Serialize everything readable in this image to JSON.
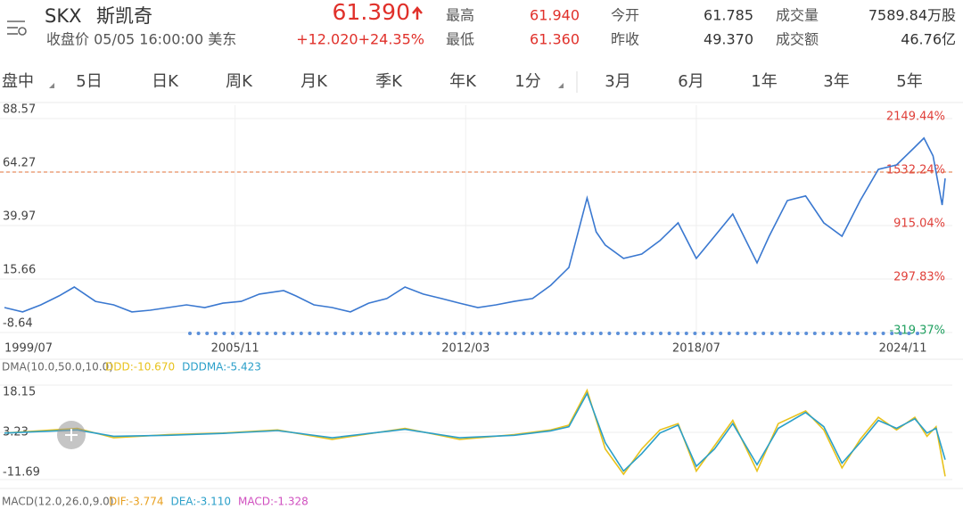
{
  "header": {
    "ticker": "SKX",
    "name": "斯凯奇",
    "price": "61.390",
    "close_info": "收盘价 05/05 16:00:00 美东",
    "change": "+12.020+24.35%",
    "stats": [
      [
        "最高",
        "61.940",
        "今开",
        "61.785",
        "成交量",
        "7589.84万股"
      ],
      [
        "最低",
        "61.360",
        "昨收",
        "49.370",
        "成交额",
        "46.76亿"
      ]
    ]
  },
  "tabs": [
    "盘中",
    "5日",
    "日K",
    "周K",
    "月K",
    "季K",
    "年K",
    "1分",
    "3月",
    "6月",
    "1年",
    "3年",
    "5年"
  ],
  "chart_data": [
    {
      "type": "line",
      "color": "#3a78d0",
      "x": [
        "1999/07",
        "2000/01",
        "2000/07",
        "2001/01",
        "2001/06",
        "2002/01",
        "2002/07",
        "2003/01",
        "2003/07",
        "2004/01",
        "2004/07",
        "2005/01",
        "2005/07",
        "2006/01",
        "2006/07",
        "2007/03",
        "2007/07",
        "2008/01",
        "2008/07",
        "2009/01",
        "2009/07",
        "2010/01",
        "2010/07",
        "2011/01",
        "2011/07",
        "2012/01",
        "2012/07",
        "2013/01",
        "2013/07",
        "2014/01",
        "2014/07",
        "2015/01",
        "2015/07",
        "2015/10",
        "2016/01",
        "2016/07",
        "2017/01",
        "2017/07",
        "2018/01",
        "2018/07",
        "2019/01",
        "2019/07",
        "2020/03",
        "2020/07",
        "2021/01",
        "2021/07",
        "2022/01",
        "2022/07",
        "2023/01",
        "2023/07",
        "2024/01",
        "2024/07",
        "2024/10",
        "2025/01",
        "2025/04",
        "2025/05"
      ],
      "values": [
        2.7,
        0.7,
        3.9,
        8.0,
        12.0,
        5.5,
        3.9,
        0.7,
        1.5,
        2.7,
        3.9,
        2.7,
        4.7,
        5.5,
        8.8,
        10.4,
        8.0,
        3.9,
        2.7,
        0.7,
        4.7,
        6.8,
        12.0,
        8.8,
        6.8,
        4.7,
        2.7,
        3.9,
        5.5,
        6.8,
        12.8,
        20.9,
        52.5,
        37.1,
        31.1,
        25.0,
        27.0,
        33.1,
        41.2,
        25.0,
        35.1,
        45.2,
        23.0,
        35.1,
        51.3,
        53.4,
        41.2,
        35.1,
        51.3,
        65.5,
        67.5,
        75.6,
        79.7,
        71.6,
        49.3,
        61.39
      ],
      "xlim": [
        "1999/07",
        "2025/05"
      ],
      "xticks": [
        "1999/07",
        "2005/11",
        "2012/03",
        "2018/07",
        "2024/11"
      ],
      "ylim": [
        -8.64,
        88.57
      ],
      "yticks": [
        -8.64,
        15.66,
        39.97,
        64.27,
        88.57
      ],
      "y2lim": [
        -319.37,
        2149.44
      ],
      "y2ticks": [
        {
          "value": -319.37,
          "label": "-319.37%"
        },
        {
          "value": 297.83,
          "label": "297.83%"
        },
        {
          "value": 915.04,
          "label": "915.04%"
        },
        {
          "value": 1532.24,
          "label": "1532.24%"
        },
        {
          "value": 2149.44,
          "label": "2149.44%"
        }
      ],
      "ref_line": 64.27,
      "grid": true
    },
    {
      "type": "line",
      "title": "DMA(10.0,50.0,10.0)",
      "x": [
        "1999/07",
        "2001/07",
        "2002/07",
        "2004/01",
        "2005/07",
        "2007/01",
        "2008/07",
        "2010/07",
        "2012/01",
        "2013/07",
        "2014/07",
        "2015/01",
        "2015/07",
        "2016/01",
        "2016/07",
        "2017/01",
        "2017/07",
        "2018/01",
        "2018/07",
        "2019/01",
        "2019/07",
        "2020/03",
        "2020/10",
        "2021/07",
        "2022/01",
        "2022/07",
        "2023/01",
        "2023/07",
        "2024/01",
        "2024/07",
        "2024/11",
        "2025/02",
        "2025/05"
      ],
      "series": [
        {
          "name": "DDD:-10.670",
          "color": "#e8c21c",
          "values": [
            3.0,
            4.5,
            1.5,
            2.5,
            3.0,
            4.0,
            1.0,
            4.5,
            1.0,
            2.5,
            4.0,
            5.5,
            16.5,
            -2.0,
            -10.0,
            -2.0,
            4.0,
            6.0,
            -9.0,
            -1.0,
            7.0,
            -9.0,
            6.0,
            10.0,
            4.0,
            -8.0,
            1.0,
            8.0,
            4.0,
            8.0,
            2.0,
            5.0,
            -10.67
          ]
        },
        {
          "name": "DDDMA:-5.423",
          "color": "#2a9fc9",
          "values": [
            3.0,
            4.0,
            2.0,
            2.3,
            2.9,
            3.8,
            1.5,
            4.2,
            1.5,
            2.3,
            3.7,
            5.0,
            15.5,
            0.0,
            -9.0,
            -3.5,
            3.0,
            5.5,
            -7.5,
            -2.0,
            6.0,
            -7.0,
            4.5,
            9.5,
            5.0,
            -6.5,
            0.0,
            7.0,
            4.5,
            7.5,
            3.0,
            4.5,
            -5.423
          ]
        }
      ],
      "xlim": [
        "1999/07",
        "2025/05"
      ],
      "ylim": [
        -11.69,
        18.15
      ],
      "yticks": [
        -11.69,
        3.23,
        18.15
      ]
    },
    {
      "type": "legend",
      "title": "MACD(12.0,26.0,9.0)",
      "series": [
        {
          "name": "DIF:-3.774",
          "color": "#e8a020"
        },
        {
          "name": "DEA:-3.110",
          "color": "#2a9fc9"
        },
        {
          "name": "MACD:-1.328",
          "color": "#d050c0"
        }
      ]
    }
  ]
}
